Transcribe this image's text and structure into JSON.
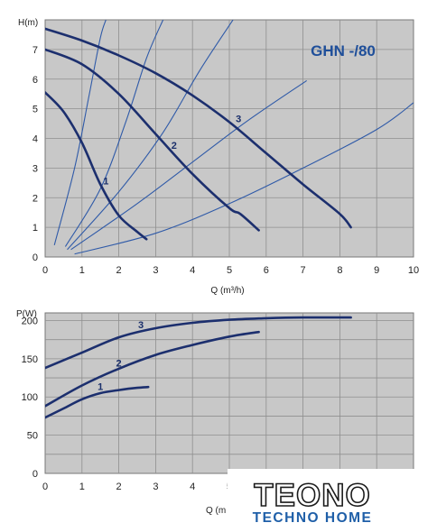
{
  "colors": {
    "plot_bg": "#c8c8c8",
    "grid": "#8f8f8f",
    "pump_curve": "#1c2f6e",
    "system_curve": "#2f5aa8",
    "title": "#1f4f9a"
  },
  "chart_data": [
    {
      "type": "line",
      "title": "GHN -/80",
      "ylabel": "H(m)",
      "xlabel": "Q (m³/h)",
      "xlim": [
        0,
        10
      ],
      "ylim": [
        0,
        8
      ],
      "xticks": [
        "0",
        "1",
        "2",
        "3",
        "4",
        "5",
        "6",
        "7",
        "8",
        "9",
        "10"
      ],
      "yticks": [
        "0",
        "1",
        "2",
        "3",
        "4",
        "5",
        "6",
        "7"
      ],
      "grid": true,
      "series": [
        {
          "name": "1",
          "x": [
            0,
            0.5,
            1.0,
            1.5,
            2.0,
            2.5,
            2.75
          ],
          "y": [
            5.55,
            4.9,
            3.85,
            2.45,
            1.4,
            0.85,
            0.6
          ]
        },
        {
          "name": "2",
          "x": [
            0,
            1.0,
            2.0,
            3.0,
            4.0,
            5.0,
            5.3,
            5.8
          ],
          "y": [
            7.0,
            6.5,
            5.5,
            4.15,
            2.8,
            1.65,
            1.45,
            0.9
          ]
        },
        {
          "name": "3",
          "x": [
            0,
            1,
            2,
            3,
            4,
            5,
            6,
            7,
            8,
            8.3
          ],
          "y": [
            7.7,
            7.3,
            6.8,
            6.2,
            5.45,
            4.55,
            3.5,
            2.45,
            1.45,
            1.0
          ]
        }
      ],
      "system_curves": [
        {
          "x": [
            0.25,
            0.8,
            1.2,
            1.5,
            1.65
          ],
          "y": [
            0.4,
            3.0,
            5.5,
            7.4,
            8.0
          ]
        },
        {
          "x": [
            0.55,
            1.5,
            2.2,
            2.75,
            3.2
          ],
          "y": [
            0.35,
            2.3,
            4.6,
            6.7,
            8.0
          ]
        },
        {
          "x": [
            0.6,
            2.0,
            3.2,
            4.2,
            5.1
          ],
          "y": [
            0.25,
            2.2,
            4.2,
            6.3,
            8.0
          ]
        },
        {
          "x": [
            0.7,
            2.5,
            4.0,
            5.5,
            7.1
          ],
          "y": [
            0.25,
            1.8,
            3.2,
            4.6,
            5.95
          ]
        },
        {
          "x": [
            0.8,
            3.0,
            5.0,
            7.0,
            9.0,
            10.0
          ],
          "y": [
            0.1,
            0.8,
            1.8,
            3.0,
            4.3,
            5.2
          ]
        }
      ],
      "curve_labels": [
        "1",
        "2",
        "3"
      ]
    },
    {
      "type": "line",
      "ylabel": "P(W)",
      "xlabel": "Q (m",
      "xlim": [
        0,
        10
      ],
      "ylim": [
        0,
        210
      ],
      "xticks": [
        "0",
        "1",
        "2",
        "3",
        "4",
        "5"
      ],
      "yticks": [
        "0",
        "50",
        "100",
        "150",
        "200"
      ],
      "grid": true,
      "series": [
        {
          "name": "1",
          "x": [
            0,
            0.5,
            1.0,
            1.5,
            2.0,
            2.5,
            2.8
          ],
          "y": [
            73,
            85,
            97,
            105,
            109,
            112,
            113
          ]
        },
        {
          "name": "2",
          "x": [
            0,
            1,
            2,
            3,
            4,
            5,
            5.8
          ],
          "y": [
            88,
            115,
            137,
            155,
            168,
            179,
            185
          ]
        },
        {
          "name": "3",
          "x": [
            0,
            1,
            2,
            3,
            4,
            5,
            6,
            7,
            8,
            8.3
          ],
          "y": [
            138,
            158,
            178,
            190,
            197,
            201,
            203,
            204,
            204,
            204
          ]
        }
      ],
      "curve_labels": [
        "1",
        "2",
        "3"
      ]
    }
  ],
  "logo": {
    "main": "TEONO",
    "sub": "TECHNO HOME"
  }
}
